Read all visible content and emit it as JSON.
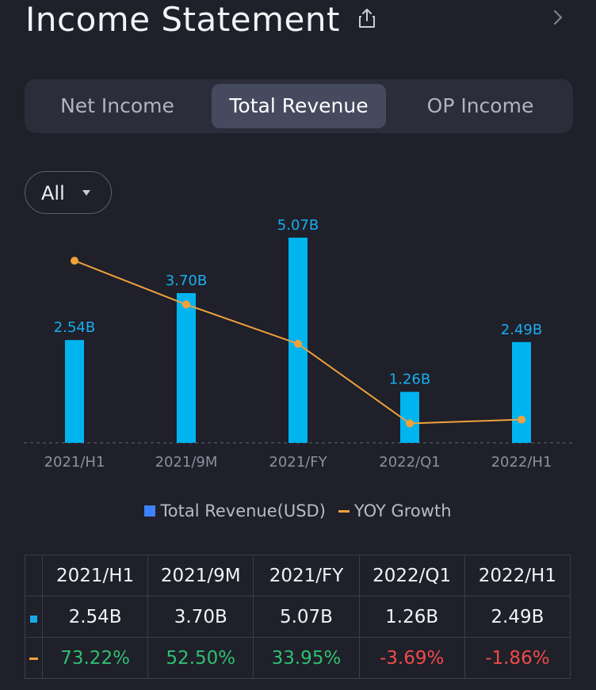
{
  "header": {
    "title": "Income Statement"
  },
  "tabs": [
    {
      "label": "Net Income",
      "active": false
    },
    {
      "label": "Total Revenue",
      "active": true
    },
    {
      "label": "OP Income",
      "active": false
    }
  ],
  "filter": {
    "selected": "All"
  },
  "chart_data": {
    "type": "bar",
    "categories": [
      "2021/H1",
      "2021/9M",
      "2021/FY",
      "2022/Q1",
      "2022/H1"
    ],
    "series": [
      {
        "name": "Total Revenue(USD)",
        "type": "bar",
        "values": [
          2.54,
          3.7,
          5.07,
          1.26,
          2.49
        ],
        "labels": [
          "2.54B",
          "3.70B",
          "5.07B",
          "1.26B",
          "2.49B"
        ]
      },
      {
        "name": "YOY Growth",
        "type": "line",
        "values": [
          73.22,
          52.5,
          33.95,
          -3.69,
          -1.86
        ]
      }
    ],
    "legend": [
      "Total Revenue(USD)",
      "YOY Growth"
    ],
    "colors": {
      "bar": "#00b4f0",
      "line": "#f1a13b",
      "legend_bar": "#3d82ff"
    }
  },
  "table": {
    "headers": [
      "2021/H1",
      "2021/9M",
      "2021/FY",
      "2022/Q1",
      "2022/H1"
    ],
    "revenue": [
      "2.54B",
      "3.70B",
      "5.07B",
      "1.26B",
      "2.49B"
    ],
    "yoy": [
      "73.22%",
      "52.50%",
      "33.95%",
      "-3.69%",
      "-1.86%"
    ]
  }
}
